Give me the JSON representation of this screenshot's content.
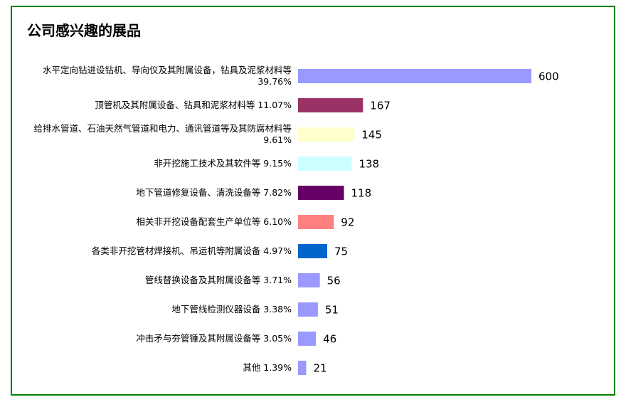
{
  "chart_data": {
    "type": "bar",
    "orientation": "horizontal",
    "title": "公司感兴趣的展品",
    "categories": [
      "水平定向钻进设钻机、导向仪及其附属设备，钻具及泥浆材料等 39.76%",
      "顶管机及其附属设备、钻具和泥浆材料等 11.07%",
      "给排水管道、石油天然气管道和电力、通讯管道等及其防腐材料等 9.61%",
      "非开挖施工技术及其软件等 9.15%",
      "地下管道修复设备、清洗设备等 7.82%",
      "相关非开挖设备配套生产单位等 6.10%",
      "各类非开挖管材焊接机、吊运机等附属设备 4.97%",
      "管线替换设备及其附属设备等 3.71%",
      "地下管线检测仪器设备 3.38%",
      "冲击矛与夯管锤及其附属设备等 3.05%",
      "其他 1.39%"
    ],
    "values": [
      600,
      167,
      145,
      138,
      118,
      92,
      75,
      56,
      51,
      46,
      21
    ],
    "colors": [
      "#9999ff",
      "#993366",
      "#ffffcc",
      "#ccffff",
      "#660066",
      "#ff8080",
      "#0066cc",
      "#9999ff",
      "#9999ff",
      "#9999ff",
      "#9999ff"
    ]
  }
}
